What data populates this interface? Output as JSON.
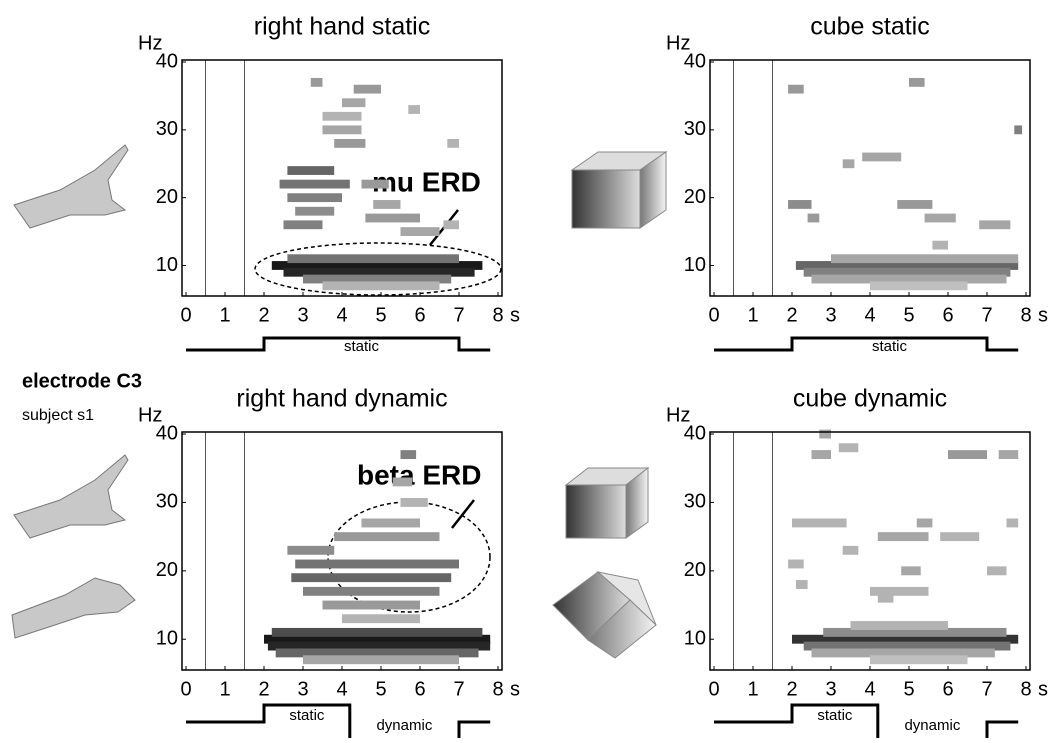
{
  "labels": {
    "electrode": "electrode C3",
    "subject": "subject s1"
  },
  "chart_data": [
    {
      "type": "heatmap",
      "title": "right hand static",
      "y_label": "Hz",
      "x_label": "s",
      "xlim": [
        0,
        8
      ],
      "ylim": [
        5.5,
        40.3
      ],
      "xticks": [
        0,
        1,
        2,
        3,
        4,
        5,
        6,
        7,
        8
      ],
      "yticks": [
        10,
        20,
        30,
        40
      ],
      "markers": [
        0.5,
        1.5
      ],
      "annotation": "mu ERD",
      "cells": {
        "x0": [
          2.2,
          2.5,
          2.6,
          3.0,
          3.5,
          2.6,
          2.4,
          2.6,
          2.8,
          4.6,
          2.5,
          5.5,
          4.5,
          4.8,
          3.2,
          4.3,
          4.0,
          3.5,
          3.5,
          3.8,
          5.7,
          6.7,
          6.6
        ],
        "x1": [
          7.6,
          7.4,
          7.0,
          6.8,
          6.5,
          3.8,
          4.2,
          4.0,
          3.8,
          6.0,
          3.5,
          6.5,
          5.2,
          5.5,
          3.5,
          5.0,
          4.6,
          4.5,
          4.5,
          4.6,
          6.0,
          7.0,
          7.0
        ],
        "y": [
          10,
          9,
          11,
          8,
          7,
          24,
          22,
          20,
          18,
          17,
          16,
          15,
          22,
          19,
          37,
          36,
          34,
          32,
          30,
          28,
          33,
          28,
          16
        ],
        "values": [
          0.9,
          0.85,
          0.55,
          0.5,
          0.3,
          0.6,
          0.55,
          0.5,
          0.45,
          0.4,
          0.5,
          0.35,
          0.4,
          0.35,
          0.4,
          0.4,
          0.35,
          0.3,
          0.35,
          0.4,
          0.3,
          0.3,
          0.3
        ]
      },
      "timeline": {
        "edges": [
          2,
          7
        ],
        "labels": [
          "static"
        ]
      }
    },
    {
      "type": "heatmap",
      "title": "cube static",
      "y_label": "Hz",
      "x_label": "s",
      "xlim": [
        0,
        8
      ],
      "ylim": [
        5.5,
        40.3
      ],
      "xticks": [
        0,
        1,
        2,
        3,
        4,
        5,
        6,
        7,
        8
      ],
      "yticks": [
        10,
        20,
        30,
        40
      ],
      "markers": [
        0.5,
        1.5
      ],
      "cells": {
        "x0": [
          2.1,
          2.3,
          3.0,
          2.5,
          4.0,
          1.9,
          2.4,
          4.7,
          5.4,
          6.8,
          3.3,
          3.8,
          1.9,
          5.0,
          7.7,
          5.6
        ],
        "x1": [
          7.8,
          7.6,
          7.8,
          7.5,
          6.5,
          2.5,
          2.7,
          5.6,
          6.2,
          7.6,
          3.6,
          4.8,
          2.3,
          5.4,
          7.9,
          6.0
        ],
        "y": [
          10,
          9,
          11,
          8,
          7,
          19,
          17,
          19,
          17,
          16,
          25,
          26,
          36,
          37,
          30,
          13
        ],
        "values": [
          0.6,
          0.5,
          0.35,
          0.35,
          0.25,
          0.45,
          0.4,
          0.4,
          0.35,
          0.35,
          0.35,
          0.35,
          0.4,
          0.4,
          0.5,
          0.3
        ]
      },
      "timeline": {
        "edges": [
          2,
          7
        ],
        "labels": [
          "static"
        ]
      }
    },
    {
      "type": "heatmap",
      "title": "right hand dynamic",
      "y_label": "Hz",
      "x_label": "s",
      "xlim": [
        0,
        8
      ],
      "ylim": [
        5.5,
        40.3
      ],
      "xticks": [
        0,
        1,
        2,
        3,
        4,
        5,
        6,
        7,
        8
      ],
      "yticks": [
        10,
        20,
        30,
        40
      ],
      "markers": [
        0.5,
        1.5
      ],
      "annotation": "beta ERD",
      "cells": {
        "x0": [
          2.0,
          2.1,
          2.2,
          2.3,
          3.0,
          2.6,
          2.8,
          2.7,
          3.0,
          3.5,
          3.8,
          4.5,
          5.5,
          5.3,
          5.5,
          4.0
        ],
        "x1": [
          7.8,
          7.8,
          7.6,
          7.5,
          7.0,
          3.8,
          7.0,
          6.8,
          6.5,
          6.0,
          6.5,
          6.0,
          6.2,
          5.8,
          5.9,
          6.0
        ],
        "y": [
          10,
          9,
          11,
          8,
          7,
          23,
          21,
          19,
          17,
          15,
          25,
          27,
          30,
          33,
          37,
          13
        ],
        "values": [
          0.9,
          0.85,
          0.7,
          0.6,
          0.35,
          0.45,
          0.55,
          0.6,
          0.5,
          0.4,
          0.4,
          0.35,
          0.3,
          0.35,
          0.5,
          0.3
        ]
      },
      "timeline": {
        "edges": [
          2,
          4.2,
          7
        ],
        "labels": [
          "static",
          "dynamic"
        ]
      }
    },
    {
      "type": "heatmap",
      "title": "cube dynamic",
      "y_label": "Hz",
      "x_label": "s",
      "xlim": [
        0,
        8
      ],
      "ylim": [
        5.5,
        40.3
      ],
      "xticks": [
        0,
        1,
        2,
        3,
        4,
        5,
        6,
        7,
        8
      ],
      "yticks": [
        10,
        20,
        30,
        40
      ],
      "markers": [
        0.5,
        1.5
      ],
      "cells": {
        "x0": [
          2.0,
          2.3,
          2.8,
          2.5,
          3.5,
          4.0,
          2.5,
          3.2,
          6.0,
          7.3,
          2.7,
          2.0,
          4.2,
          5.8,
          5.2,
          7.5,
          1.9,
          4.8,
          4.0,
          4.2,
          7.0,
          3.3,
          2.1
        ],
        "x1": [
          7.8,
          7.6,
          7.5,
          7.2,
          6.0,
          6.5,
          3.0,
          3.7,
          7.0,
          7.8,
          3.0,
          3.4,
          5.5,
          6.8,
          5.6,
          7.8,
          2.3,
          5.3,
          5.5,
          4.6,
          7.5,
          3.7,
          2.4
        ],
        "y": [
          10,
          9,
          11,
          8,
          12,
          7,
          37,
          38,
          37,
          37,
          40,
          27,
          25,
          25,
          27,
          27,
          21,
          20,
          17,
          16,
          20,
          23,
          18
        ],
        "values": [
          0.8,
          0.55,
          0.45,
          0.35,
          0.3,
          0.25,
          0.35,
          0.3,
          0.4,
          0.35,
          0.35,
          0.3,
          0.35,
          0.3,
          0.35,
          0.3,
          0.3,
          0.35,
          0.3,
          0.3,
          0.3,
          0.3,
          0.3
        ]
      },
      "timeline": {
        "edges": [
          2,
          4.2,
          7
        ],
        "labels": [
          "static",
          "dynamic"
        ]
      }
    }
  ]
}
